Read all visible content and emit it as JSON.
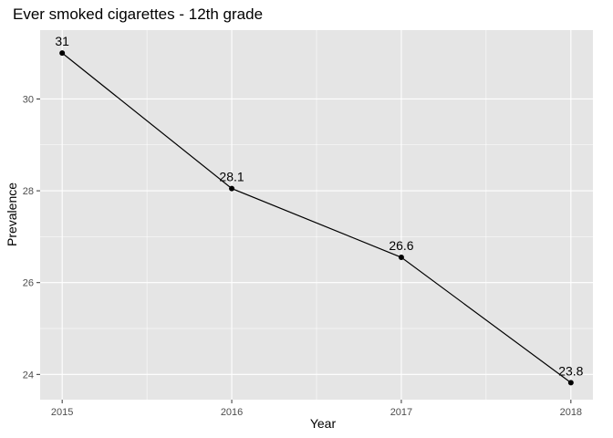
{
  "chart_data": {
    "type": "line",
    "title": "Ever smoked cigarettes - 12th grade",
    "xlabel": "Year",
    "ylabel": "Prevalence",
    "x": [
      2015,
      2016,
      2017,
      2018
    ],
    "xlim": [
      2014.87,
      2018.13
    ],
    "xticks": [
      2015,
      2016,
      2017,
      2018
    ],
    "ylim": [
      23.45,
      31.5
    ],
    "yticks": [
      24,
      26,
      28,
      30
    ],
    "series": [
      {
        "values": [
          31.0,
          28.05,
          26.55,
          23.82
        ],
        "labels": [
          "31",
          "28.1",
          "26.6",
          "23.8"
        ]
      }
    ],
    "grid": true,
    "legend": "none",
    "colors": {
      "panel": "#e5e5e5",
      "grid_major": "#ffffff",
      "line": "#000000",
      "point": "#000000",
      "tick_text": "#4d4d4d"
    }
  }
}
